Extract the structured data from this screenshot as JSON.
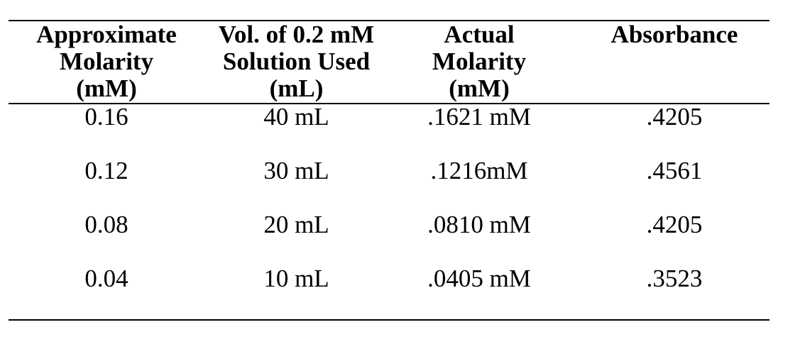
{
  "table": {
    "headers": [
      [
        "Approximate",
        "Molarity",
        "(mM)"
      ],
      [
        "Vol. of 0.2 mM",
        "Solution Used",
        "(mL)"
      ],
      [
        "Actual",
        "Molarity",
        "(mM)"
      ],
      [
        "Absorbance"
      ]
    ],
    "rows": [
      [
        "0.16",
        "40 mL",
        ".1621 mM",
        ".4205"
      ],
      [
        "0.12",
        "30 mL",
        ".1216mM",
        ".4561"
      ],
      [
        "0.08",
        "20 mL",
        ".0810 mM",
        ".4205"
      ],
      [
        "0.04",
        "10 mL",
        ".0405 mM",
        ".3523"
      ]
    ]
  }
}
